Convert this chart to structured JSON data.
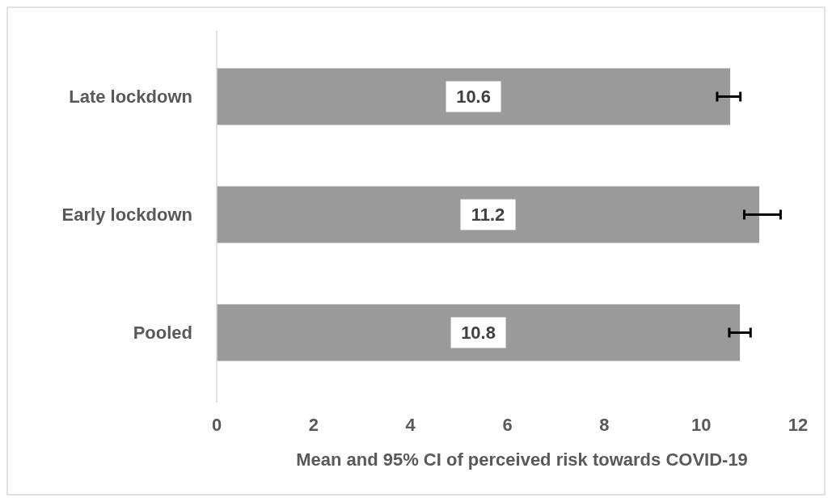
{
  "chart_data": {
    "type": "bar",
    "orientation": "horizontal",
    "xlabel": "Mean and 95% CI of perceived risk towards COVID-19",
    "categories": [
      "Late lockdown",
      "Early lockdown",
      "Pooled"
    ],
    "values": [
      10.6,
      11.2,
      10.8
    ],
    "errors": [
      [
        10.33,
        10.81
      ],
      [
        10.89,
        11.64
      ],
      [
        10.58,
        11.02
      ]
    ],
    "color": "#9a9a9a",
    "data_labels": true,
    "xlim": [
      0,
      12
    ],
    "xticks": [
      0,
      2,
      4,
      6,
      8,
      10,
      12
    ],
    "grid": false
  }
}
